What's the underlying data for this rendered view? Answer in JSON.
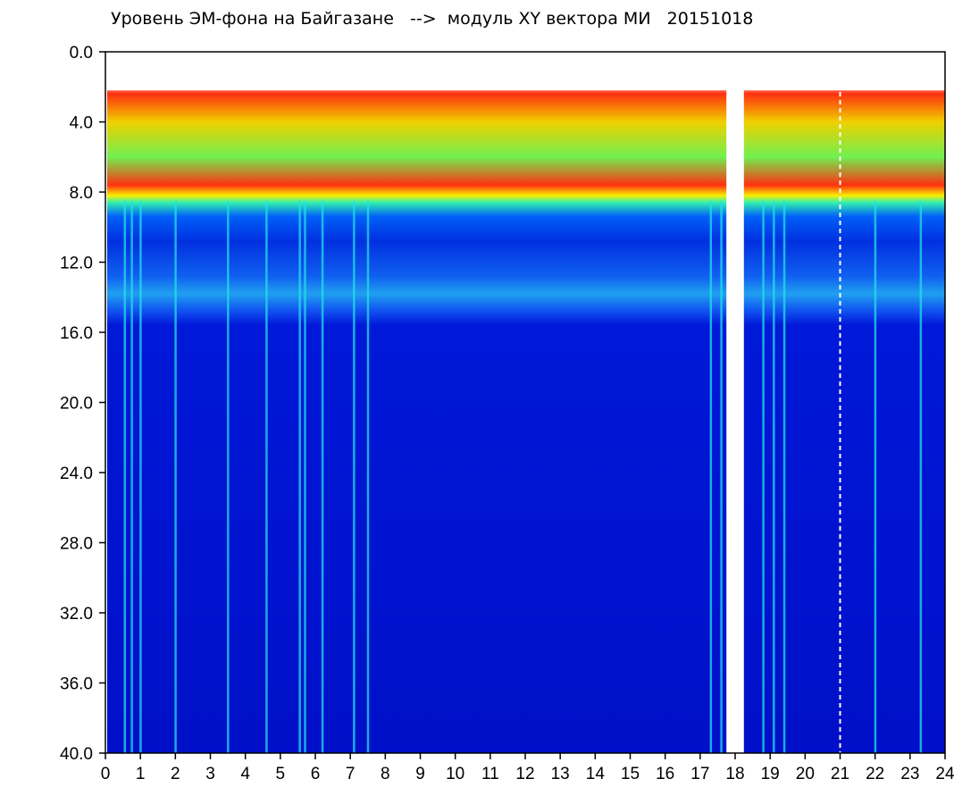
{
  "chart_data": {
    "type": "heatmap",
    "title": "Уровень ЭМ-фона на Байгазане   -->  модуль XY вектора МИ   20151018",
    "xlabel": "",
    "ylabel": "",
    "xlim": [
      0,
      24
    ],
    "ylim": [
      0,
      40
    ],
    "y_axis_inverted": true,
    "x_ticks": [
      0,
      1,
      2,
      3,
      4,
      5,
      6,
      7,
      8,
      9,
      10,
      11,
      12,
      13,
      14,
      15,
      16,
      17,
      18,
      19,
      20,
      21,
      22,
      23,
      24
    ],
    "x_tick_labels": [
      "0",
      "1",
      "2",
      "3",
      "4",
      "5",
      "6",
      "7",
      "8",
      "9",
      "10",
      "11",
      "12",
      "13",
      "14",
      "15",
      "16",
      "17",
      "18",
      "19",
      "20",
      "21",
      "22",
      "23",
      "24"
    ],
    "y_ticks": [
      0,
      4,
      8,
      12,
      16,
      20,
      24,
      28,
      32,
      36,
      40
    ],
    "y_tick_labels": [
      "0.0",
      "4.0",
      "8.0",
      "12.0",
      "16.0",
      "20.0",
      "24.0",
      "28.0",
      "32.0",
      "36.0",
      "40.0"
    ],
    "grid": false,
    "colormap": [
      "#0000d8",
      "#1040f0",
      "#00c8e8",
      "#30f0a0",
      "#e8f000",
      "#ff2000",
      "#ffffff"
    ],
    "colors": {
      "background_low": "#0a1ed0",
      "band_mid": "#0040f0",
      "band_high": "#ff2000",
      "marker_line": "#ffffff"
    },
    "bands": [
      {
        "y_from": 2.0,
        "y_to": 8.0,
        "level": "high"
      },
      {
        "y_from": 8.0,
        "y_to": 9.5,
        "level": "mid"
      },
      {
        "y_from": 9.5,
        "y_to": 15.5,
        "level": "elevated"
      },
      {
        "y_from": 15.5,
        "y_to": 40.0,
        "level": "low"
      }
    ],
    "gaps": [
      {
        "x_from": 0.0,
        "x_to": 0.05
      },
      {
        "x_from": 17.75,
        "x_to": 18.25
      }
    ],
    "vertical_streaks": [
      0.55,
      0.75,
      1.0,
      2.0,
      3.5,
      4.6,
      5.55,
      5.7,
      6.2,
      7.1,
      7.5,
      17.3,
      17.6,
      18.8,
      19.1,
      19.4,
      22.0,
      23.3
    ],
    "dashed_marker_x": 21
  }
}
